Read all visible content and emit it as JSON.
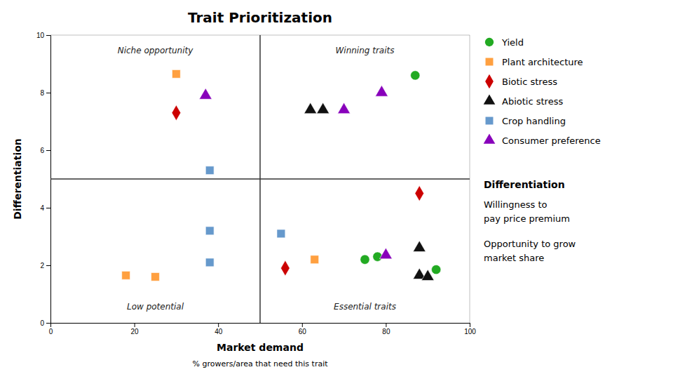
{
  "chart_data": {
    "type": "scatter",
    "title": "Trait Prioritization",
    "xlabel": "Market demand",
    "xlabel_note": "% growers/area that need this trait",
    "ylabel": "Differentiation",
    "xlim": [
      0,
      100
    ],
    "ylim": [
      0,
      10
    ],
    "xticks": [
      0,
      20,
      40,
      60,
      80,
      100
    ],
    "yticks": [
      0,
      2,
      4,
      6,
      8,
      10
    ],
    "grid": false,
    "legend": "right",
    "dividers": {
      "x": 50,
      "y": 5
    },
    "annotations": [
      {
        "text": "Niche opportunity",
        "x": 25,
        "y": 9.6
      },
      {
        "text": "Winning traits",
        "x": 75,
        "y": 9.6
      },
      {
        "text": "Low potential",
        "x": 25,
        "y": 0.4
      },
      {
        "text": "Essential traits",
        "x": 75,
        "y": 0.4
      }
    ],
    "notes_title": "Differentiation",
    "notes": [
      [
        "Willingness to",
        "pay price premium"
      ],
      [
        "Opportunity to grow",
        "market share"
      ]
    ],
    "series": [
      {
        "name": "Yield",
        "color": "#22AA22",
        "marker": "circle",
        "x": [
          87,
          78,
          92,
          75
        ],
        "values": [
          8.6,
          2.3,
          1.85,
          2.2
        ]
      },
      {
        "name": "Plant architecture",
        "color": "#FFA040",
        "marker": "square",
        "x": [
          30,
          18,
          25,
          63
        ],
        "values": [
          8.65,
          1.65,
          1.6,
          2.2
        ]
      },
      {
        "name": "Biotic stress",
        "color": "#CC0000",
        "marker": "diamond",
        "x": [
          30,
          88,
          56
        ],
        "values": [
          7.3,
          4.5,
          1.9
        ]
      },
      {
        "name": "Abiotic stress",
        "color": "#111111",
        "marker": "triangle",
        "x": [
          62,
          65,
          88,
          88,
          90
        ],
        "values": [
          7.4,
          7.4,
          2.6,
          1.65,
          1.6
        ]
      },
      {
        "name": "Crop handling",
        "color": "#6699CC",
        "marker": "square",
        "x": [
          38,
          38,
          38,
          55
        ],
        "values": [
          5.3,
          3.2,
          2.1,
          3.1
        ]
      },
      {
        "name": "Consumer preference",
        "color": "#8800BB",
        "marker": "triangle",
        "x": [
          37,
          70,
          79,
          80
        ],
        "values": [
          7.9,
          7.4,
          8.0,
          2.35
        ]
      }
    ]
  }
}
